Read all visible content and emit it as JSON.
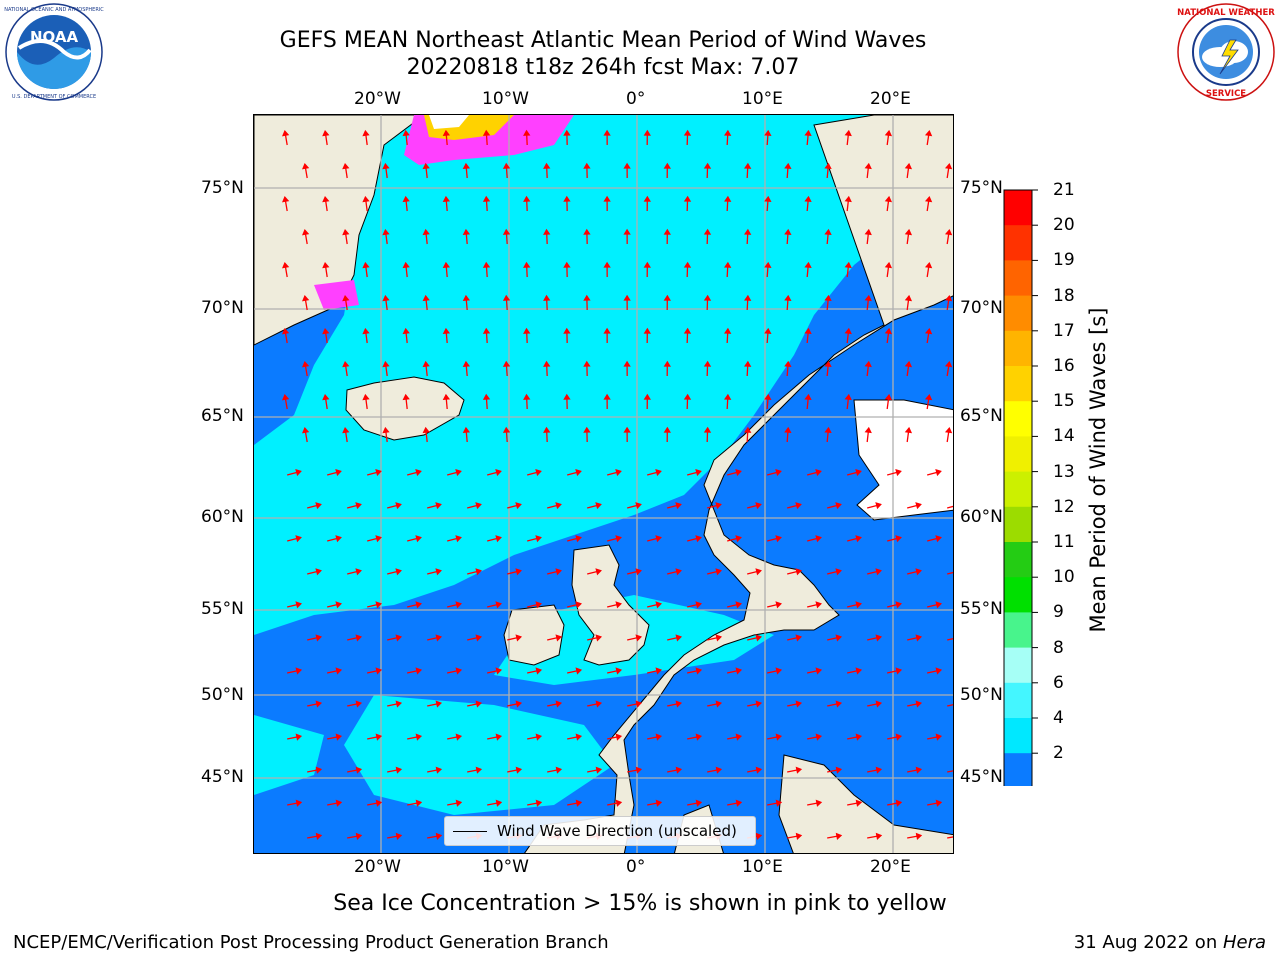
{
  "header": {
    "title_line1": "GEFS MEAN Northeast Atlantic Mean Period of Wind Waves",
    "title_line2": "20220818 t18z 264h fcst   Max: 7.07"
  },
  "logos": {
    "left": {
      "name": "NOAA",
      "text": "NOAA",
      "ring_text": "NATIONAL OCEANIC AND ATMOSPHERIC ADMINISTRATION · U.S. DEPARTMENT OF COMMERCE"
    },
    "right": {
      "name": "National Weather Service",
      "ring_text": "NATIONAL WEATHER SERVICE"
    }
  },
  "map": {
    "lon_labels": [
      "20°W",
      "10°W",
      "0°",
      "10°E",
      "20°E"
    ],
    "lat_labels": [
      "75°N",
      "70°N",
      "65°N",
      "60°N",
      "55°N",
      "50°N",
      "45°N"
    ],
    "extent": {
      "lon_min": -29.7,
      "lon_max": 24.3,
      "lat_min": 41,
      "lat_max": 78
    },
    "colors": {
      "land": "#efecdc",
      "grid": "#b0b0b0",
      "arrow": "#ff0000",
      "coast": "#000000",
      "ice_white": "#ffffff"
    },
    "legend_text": "Wind Wave Direction (unscaled)"
  },
  "colorbar": {
    "label": "Mean Period of Wind Waves [s]",
    "ticks": [
      "2",
      "4",
      "6",
      "8",
      "9",
      "10",
      "11",
      "12",
      "13",
      "14",
      "15",
      "16",
      "17",
      "18",
      "19",
      "20",
      "21"
    ],
    "colors": [
      "#0b7bff",
      "#00e8ff",
      "#44f6ff",
      "#a6fff6",
      "#48f48c",
      "#00e000",
      "#24cc14",
      "#9cdc00",
      "#ccf000",
      "#f0f000",
      "#ffff00",
      "#ffd200",
      "#ffb400",
      "#ff8c00",
      "#ff6400",
      "#ff3200",
      "#ff0000"
    ],
    "under_color": "#0000ff"
  },
  "caption": "Sea Ice Concentration > 15% is shown in pink to yellow",
  "footer": {
    "left": "NCEP/EMC/Verification Post Processing Product Generation Branch",
    "right_prefix": "31 Aug 2022 on ",
    "right_host": "Hera"
  }
}
